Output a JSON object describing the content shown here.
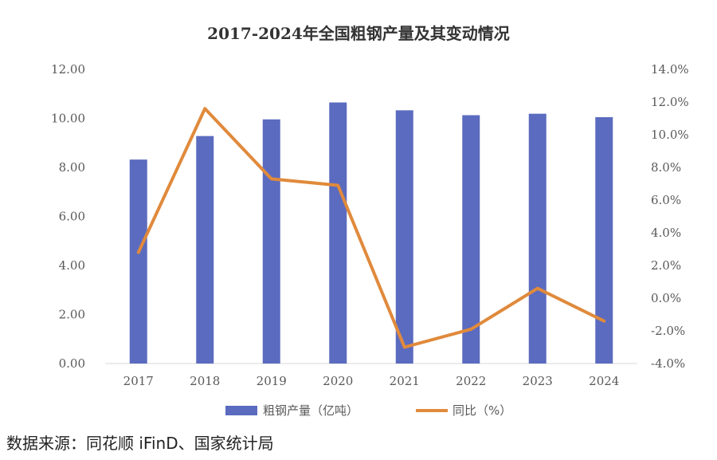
{
  "chart_data": {
    "type": "bar+line",
    "title": "2017-2024年全国粗钢产量及其变动情况",
    "categories": [
      "2017",
      "2018",
      "2019",
      "2020",
      "2021",
      "2022",
      "2023",
      "2024"
    ],
    "series": [
      {
        "name": "粗钢产量（亿吨）",
        "type": "bar",
        "axis": "left",
        "color": "#5B6BBF",
        "values": [
          8.32,
          9.28,
          9.96,
          10.65,
          10.33,
          10.13,
          10.19,
          10.05
        ]
      },
      {
        "name": "同比（%）",
        "type": "line",
        "axis": "right",
        "color": "#E08A3C",
        "values": [
          2.8,
          11.6,
          7.3,
          6.9,
          -3.0,
          -1.9,
          0.6,
          -1.4
        ]
      }
    ],
    "y_left": {
      "min": 0,
      "max": 12,
      "step": 2,
      "ticks": [
        "0.00",
        "2.00",
        "4.00",
        "6.00",
        "8.00",
        "10.00",
        "12.00"
      ]
    },
    "y_right": {
      "min": -4,
      "max": 14,
      "step": 2,
      "ticks": [
        "-4.0%",
        "-2.0%",
        "0.0%",
        "2.0%",
        "4.0%",
        "6.0%",
        "8.0%",
        "10.0%",
        "12.0%",
        "14.0%"
      ]
    },
    "grid": false,
    "legend_position": "bottom"
  },
  "source": "数据来源：同花顺 iFinD、国家统计局"
}
